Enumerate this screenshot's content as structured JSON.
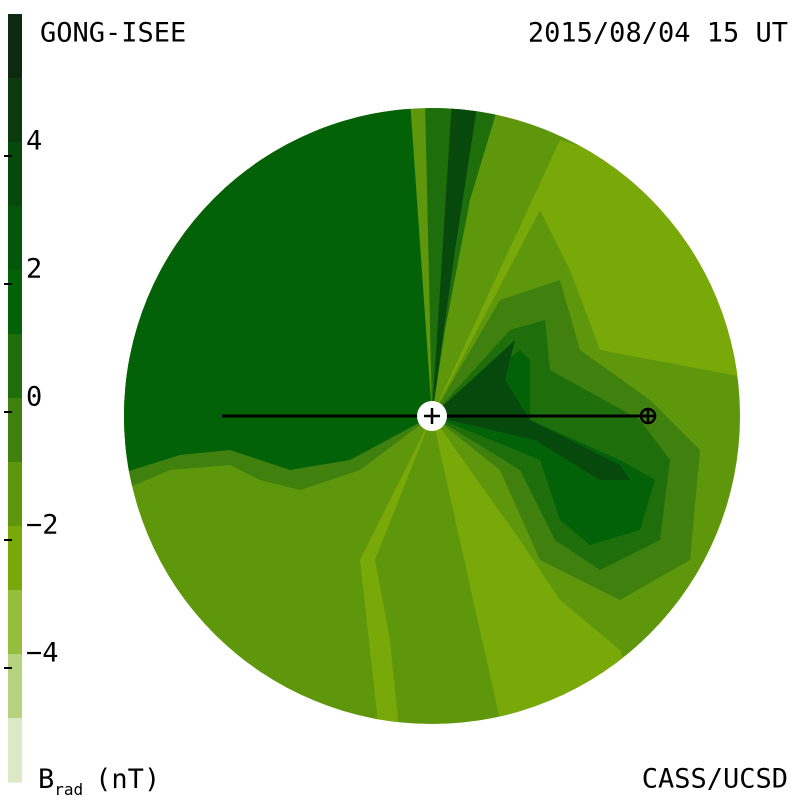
{
  "chart_data": {
    "type": "contour",
    "title": "GONG-ISEE",
    "subtitle": "2015/08/04 15 UT",
    "credit": "CASS/UCSD",
    "colorbar_label": {
      "symbol": "B",
      "subscript": "rad",
      "unit": "(nT)"
    },
    "clim": [
      -6,
      6
    ],
    "ticks": [
      4,
      2,
      0,
      {
        "value": -2,
        "label": "−2"
      },
      {
        "value": -4,
        "label": "−4"
      }
    ],
    "colors": [
      "#0d2a10",
      "#0a3a0e",
      "#07480c",
      "#05560a",
      "#036208",
      "#1e6f0c",
      "#3f800e",
      "#5e970c",
      "#78a908",
      "#94be3c",
      "#b6d27e",
      "#dde8c6"
    ]
  }
}
